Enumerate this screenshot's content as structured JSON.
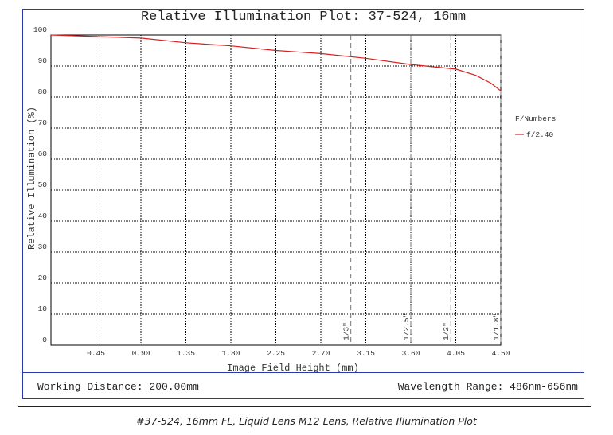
{
  "chart_data": {
    "type": "line",
    "title": "Relative Illumination Plot: 37-524, 16mm",
    "xlabel": "Image Field Height (mm)",
    "ylabel": "Relative Illumination (%)",
    "xlim": [
      0,
      4.5
    ],
    "ylim": [
      0,
      100
    ],
    "x_ticks": [
      "0.45",
      "0.90",
      "1.35",
      "1.80",
      "2.25",
      "2.70",
      "3.15",
      "3.60",
      "4.05",
      "4.50"
    ],
    "y_ticks": [
      "0",
      "10",
      "20",
      "30",
      "40",
      "50",
      "60",
      "70",
      "80",
      "90",
      "100"
    ],
    "grid": true,
    "legend": {
      "title": "F/Numbers",
      "position": "right"
    },
    "series": [
      {
        "name": "f/2.40",
        "color": "#d42020",
        "x": [
          0,
          0.45,
          0.9,
          1.35,
          1.8,
          2.25,
          2.7,
          3.15,
          3.6,
          4.05,
          4.25,
          4.4,
          4.5
        ],
        "y": [
          100,
          99.5,
          99.0,
          97.5,
          96.5,
          95.0,
          94.0,
          92.5,
          90.5,
          89.0,
          87.0,
          84.5,
          82.0
        ]
      }
    ],
    "sensor_markers": [
      {
        "label": "1/3\"",
        "x": 3.0
      },
      {
        "label": "1/2.5\"",
        "x": 3.6
      },
      {
        "label": "1/2\"",
        "x": 4.0
      },
      {
        "label": "1/1.8\"",
        "x": 4.5
      }
    ]
  },
  "footer": {
    "working_distance": "Working Distance: 200.00mm",
    "wavelength_range": "Wavelength Range: 486nm-656nm"
  },
  "caption": "#37-524, 16mm FL, Liquid Lens M12 Lens, Relative Illumination Plot"
}
